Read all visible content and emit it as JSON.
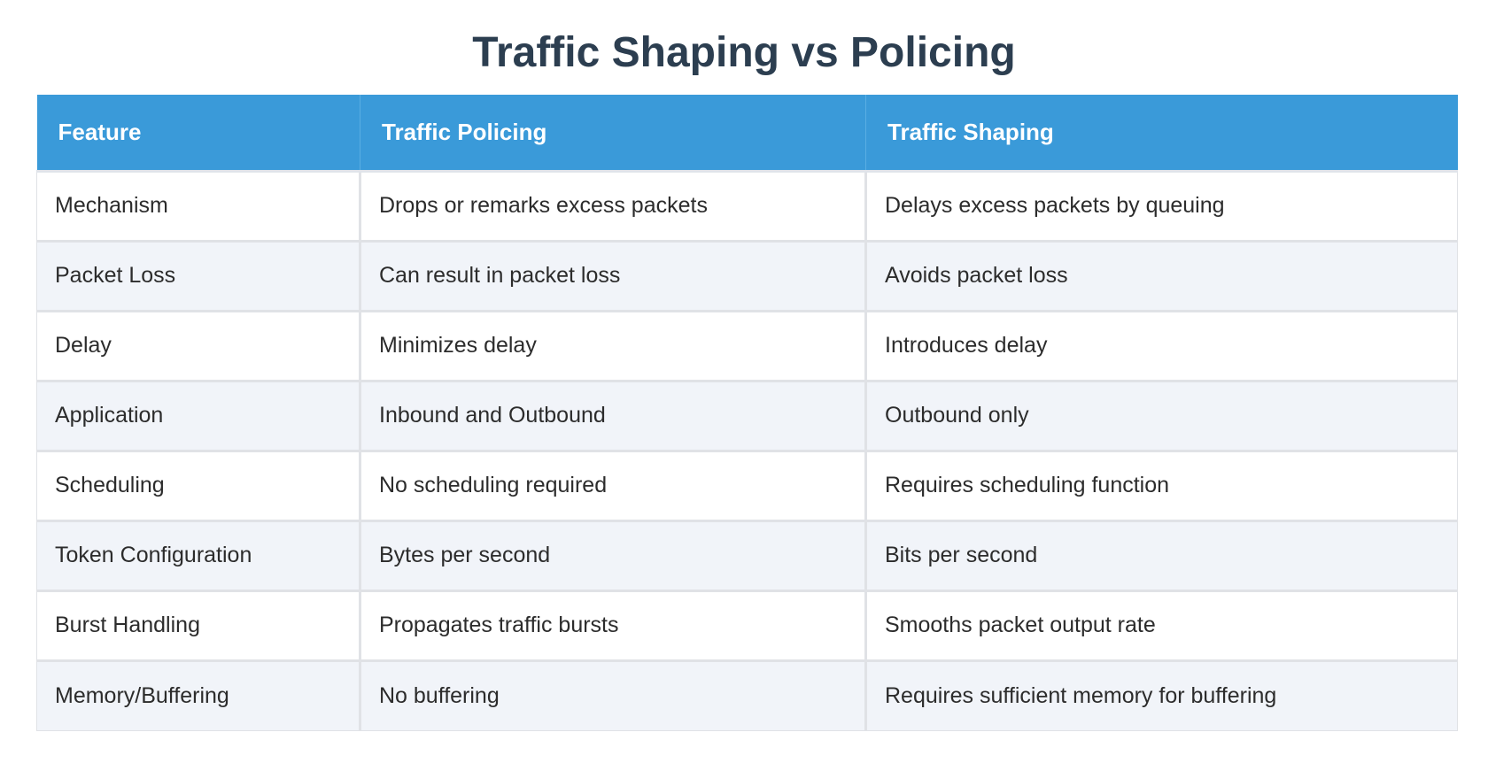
{
  "title": "Traffic Shaping vs Policing",
  "table": {
    "headers": [
      "Feature",
      "Traffic Policing",
      "Traffic Shaping"
    ],
    "rows": [
      [
        "Mechanism",
        "Drops or remarks excess packets",
        "Delays excess packets by queuing"
      ],
      [
        "Packet Loss",
        "Can result in packet loss",
        "Avoids packet loss"
      ],
      [
        "Delay",
        "Minimizes delay",
        "Introduces delay"
      ],
      [
        "Application",
        "Inbound and Outbound",
        "Outbound only"
      ],
      [
        "Scheduling",
        "No scheduling required",
        "Requires scheduling function"
      ],
      [
        "Token Configuration",
        "Bytes per second",
        "Bits per second"
      ],
      [
        "Burst Handling",
        "Propagates traffic bursts",
        "Smooths packet output rate"
      ],
      [
        "Memory/Buffering",
        "No buffering",
        "Requires sufficient memory for buffering"
      ]
    ]
  },
  "colors": {
    "header_bg": "#3a9ad9",
    "title": "#2c3e50",
    "row_alt": "#f1f4f9"
  }
}
